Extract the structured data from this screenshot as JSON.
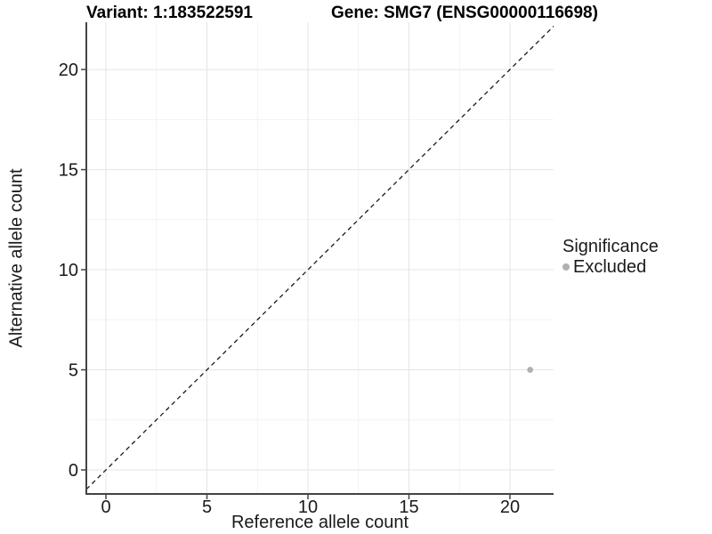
{
  "titles": {
    "variant": "Variant: 1:183522591",
    "gene": "Gene: SMG7 (ENSG00000116698)"
  },
  "axes": {
    "x_label": "Reference allele count",
    "y_label": "Alternative allele count"
  },
  "legend": {
    "title": "Significance",
    "items": [
      {
        "label": "Excluded",
        "color": "#b0b0b0"
      }
    ]
  },
  "chart_data": {
    "type": "scatter",
    "title": "Variant: 1:183522591  /  Gene: SMG7 (ENSG00000116698)",
    "xlabel": "Reference allele count",
    "ylabel": "Alternative allele count",
    "xlim": [
      -0.97,
      22.16
    ],
    "ylim": [
      -1.2,
      22.36
    ],
    "xticks": [
      0,
      5,
      10,
      15,
      20
    ],
    "yticks": [
      0,
      5,
      10,
      15,
      20
    ],
    "minor_tick_interval": 2.5,
    "grid": true,
    "legend_position": "right",
    "legend_title": "Significance",
    "series": [
      {
        "name": "Excluded",
        "color": "#b0b0b0",
        "points": [
          {
            "x": 21,
            "y": 5
          }
        ]
      }
    ],
    "reference_line": {
      "type": "y=x",
      "style": "dashed",
      "color": "#1a1a1a"
    }
  },
  "colors": {
    "background": "#ffffff",
    "grid_major": "#e5e5e5",
    "grid_minor": "#f2f2f2",
    "axis_line": "#444444",
    "tick_text": "#1a1a1a"
  }
}
